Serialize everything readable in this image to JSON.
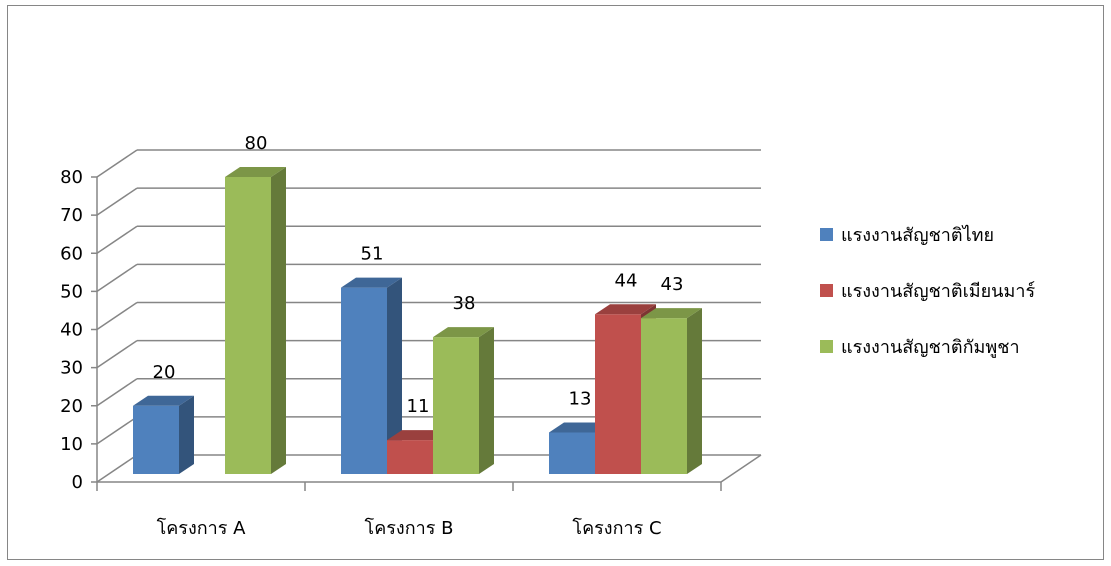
{
  "chart_data": {
    "type": "bar",
    "categories": [
      "โครงการ A",
      "โครงการ B",
      "โครงการ C"
    ],
    "series": [
      {
        "name": "แรงงานสัญชาติไทย",
        "values": [
          20,
          51,
          13
        ],
        "color": "#4F81BD"
      },
      {
        "name": "แรงงานสัญชาติเมียนมาร์",
        "values": [
          null,
          11,
          44
        ],
        "color": "#C0504D"
      },
      {
        "name": "แรงงานสัญชาติกัมพูชา",
        "values": [
          80,
          38,
          43
        ],
        "color": "#9BBB59"
      }
    ],
    "yticks": [
      "0",
      "10",
      "20",
      "30",
      "40",
      "50",
      "60",
      "70",
      "80"
    ],
    "ylim": [
      0,
      80
    ],
    "grid": true,
    "legend_position": "right",
    "title": "",
    "xlabel": "",
    "ylabel": ""
  }
}
